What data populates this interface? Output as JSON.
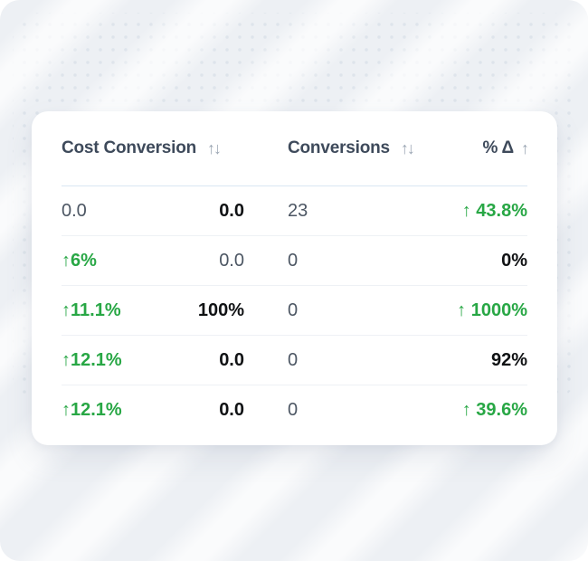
{
  "colors": {
    "background": "#edf0f4",
    "dot": "#dee4eb",
    "card": "#ffffff",
    "header_text": "#3e4a5b",
    "sort_icon": "#9ba6b3",
    "value_slate": "#4c5663",
    "value_black": "#101214",
    "value_green": "#28a745",
    "header_divider": "#d9e6f2",
    "row_divider": "#eef1f5"
  },
  "table": {
    "columns": [
      {
        "label": "Cost Conversion",
        "sort_icon": "↑↓"
      },
      {
        "label": "Conversions",
        "sort_icon": "↑↓"
      },
      {
        "label": "% Δ",
        "sort_icon": "↑"
      }
    ],
    "rows": [
      {
        "cells": [
          {
            "text": "0.0",
            "style": "slate"
          },
          {
            "text": "0.0",
            "style": "black"
          },
          {
            "text": "23",
            "style": "slate"
          },
          {
            "text": "↑ 43.8%",
            "style": "green"
          }
        ]
      },
      {
        "cells": [
          {
            "text": "↑6%",
            "style": "green"
          },
          {
            "text": "0.0",
            "style": "slate"
          },
          {
            "text": "0",
            "style": "slate"
          },
          {
            "text": "0%",
            "style": "black"
          }
        ]
      },
      {
        "cells": [
          {
            "text": "↑11.1%",
            "style": "green"
          },
          {
            "text": "100%",
            "style": "black"
          },
          {
            "text": "0",
            "style": "slate"
          },
          {
            "text": "↑ 1000%",
            "style": "green"
          }
        ]
      },
      {
        "cells": [
          {
            "text": "↑12.1%",
            "style": "green"
          },
          {
            "text": "0.0",
            "style": "black"
          },
          {
            "text": "0",
            "style": "slate"
          },
          {
            "text": "92%",
            "style": "black"
          }
        ]
      },
      {
        "cells": [
          {
            "text": "↑12.1%",
            "style": "green"
          },
          {
            "text": "0.0",
            "style": "black"
          },
          {
            "text": "0",
            "style": "slate"
          },
          {
            "text": "↑ 39.6%",
            "style": "green"
          }
        ]
      }
    ]
  }
}
